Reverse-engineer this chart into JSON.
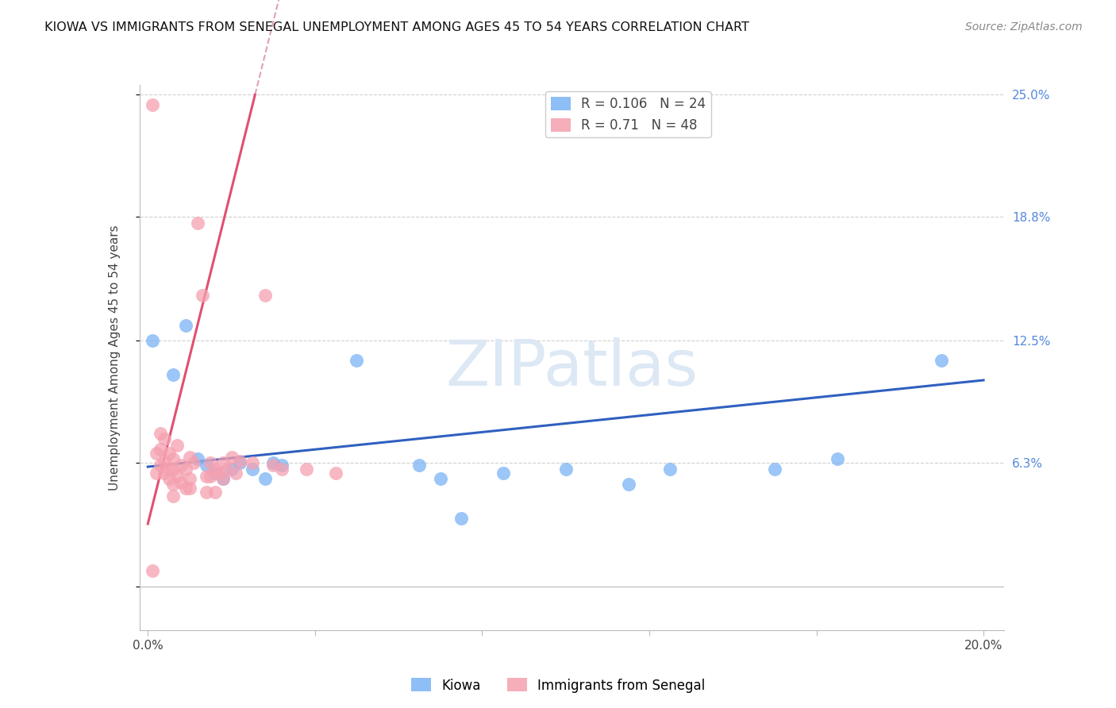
{
  "title": "KIOWA VS IMMIGRANTS FROM SENEGAL UNEMPLOYMENT AMONG AGES 45 TO 54 YEARS CORRELATION CHART",
  "source": "Source: ZipAtlas.com",
  "ylabel": "Unemployment Among Ages 45 to 54 years",
  "xlim": [
    -0.002,
    0.205
  ],
  "ylim": [
    -0.022,
    0.255
  ],
  "xplot_min": 0.0,
  "xplot_max": 0.2,
  "yplot_min": 0.0,
  "yplot_max": 0.25,
  "xtick_positions": [
    0.0,
    0.04,
    0.08,
    0.12,
    0.16,
    0.2
  ],
  "xticklabels": [
    "0.0%",
    "",
    "",
    "",
    "",
    "20.0%"
  ],
  "ytick_positions": [
    0.0,
    0.063,
    0.125,
    0.188,
    0.25
  ],
  "yticklabels_right": [
    "",
    "6.3%",
    "12.5%",
    "18.8%",
    "25.0%"
  ],
  "kiowa_color": "#7ab3f5",
  "senegal_color": "#f5a0b0",
  "kiowa_line_color": "#3060c0",
  "senegal_line_color": "#e05070",
  "senegal_dash_color": "#e0a0b8",
  "grid_color": "#d0d0d0",
  "background_color": "#ffffff",
  "right_axis_color": "#5588dd",
  "watermark": "ZIPatlas",
  "watermark_color": "#dde8f5",
  "kiowa_R": 0.106,
  "kiowa_N": 24,
  "senegal_R": 0.71,
  "senegal_N": 48,
  "kiowa_points": [
    [
      0.001,
      0.125
    ],
    [
      0.006,
      0.108
    ],
    [
      0.009,
      0.133
    ],
    [
      0.012,
      0.065
    ],
    [
      0.014,
      0.062
    ],
    [
      0.016,
      0.058
    ],
    [
      0.018,
      0.055
    ],
    [
      0.02,
      0.06
    ],
    [
      0.022,
      0.063
    ],
    [
      0.025,
      0.06
    ],
    [
      0.028,
      0.055
    ],
    [
      0.03,
      0.063
    ],
    [
      0.032,
      0.062
    ],
    [
      0.05,
      0.115
    ],
    [
      0.065,
      0.062
    ],
    [
      0.07,
      0.055
    ],
    [
      0.075,
      0.035
    ],
    [
      0.085,
      0.058
    ],
    [
      0.1,
      0.06
    ],
    [
      0.115,
      0.052
    ],
    [
      0.125,
      0.06
    ],
    [
      0.15,
      0.06
    ],
    [
      0.165,
      0.065
    ],
    [
      0.19,
      0.115
    ]
  ],
  "senegal_points": [
    [
      0.001,
      0.245
    ],
    [
      0.001,
      0.008
    ],
    [
      0.002,
      0.068
    ],
    [
      0.002,
      0.058
    ],
    [
      0.003,
      0.078
    ],
    [
      0.003,
      0.07
    ],
    [
      0.003,
      0.062
    ],
    [
      0.004,
      0.075
    ],
    [
      0.004,
      0.064
    ],
    [
      0.004,
      0.058
    ],
    [
      0.005,
      0.068
    ],
    [
      0.005,
      0.06
    ],
    [
      0.005,
      0.055
    ],
    [
      0.006,
      0.065
    ],
    [
      0.006,
      0.06
    ],
    [
      0.006,
      0.052
    ],
    [
      0.006,
      0.046
    ],
    [
      0.007,
      0.072
    ],
    [
      0.007,
      0.056
    ],
    [
      0.008,
      0.062
    ],
    [
      0.008,
      0.053
    ],
    [
      0.009,
      0.06
    ],
    [
      0.009,
      0.05
    ],
    [
      0.01,
      0.066
    ],
    [
      0.01,
      0.055
    ],
    [
      0.01,
      0.05
    ],
    [
      0.011,
      0.063
    ],
    [
      0.012,
      0.185
    ],
    [
      0.013,
      0.148
    ],
    [
      0.014,
      0.056
    ],
    [
      0.014,
      0.048
    ],
    [
      0.015,
      0.063
    ],
    [
      0.015,
      0.056
    ],
    [
      0.016,
      0.06
    ],
    [
      0.016,
      0.048
    ],
    [
      0.017,
      0.058
    ],
    [
      0.018,
      0.063
    ],
    [
      0.018,
      0.055
    ],
    [
      0.019,
      0.06
    ],
    [
      0.02,
      0.066
    ],
    [
      0.021,
      0.058
    ],
    [
      0.022,
      0.064
    ],
    [
      0.025,
      0.063
    ],
    [
      0.028,
      0.148
    ],
    [
      0.03,
      0.062
    ],
    [
      0.032,
      0.06
    ],
    [
      0.038,
      0.06
    ],
    [
      0.045,
      0.058
    ]
  ],
  "senegal_line_slope": 8.5,
  "senegal_line_intercept": 0.032,
  "kiowa_line_slope": 0.22,
  "kiowa_line_intercept": 0.061
}
